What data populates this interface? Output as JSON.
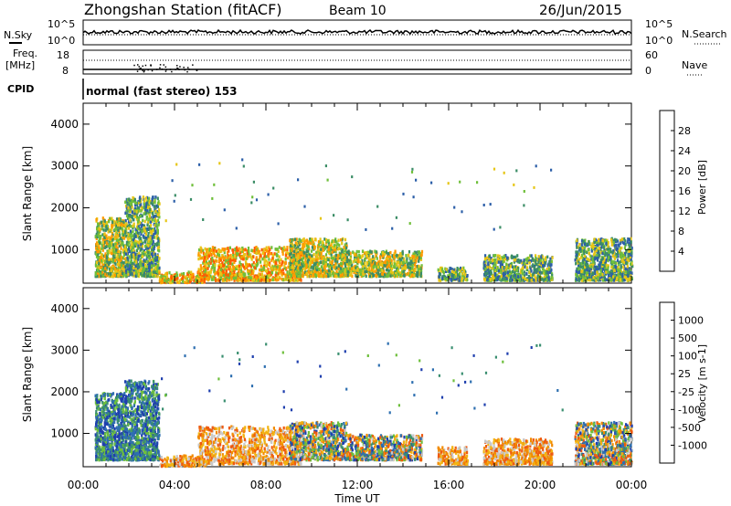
{
  "header": {
    "station": "Zhongshan Station (fitACF)",
    "beam": "Beam 10",
    "date": "26/Jun/2015"
  },
  "panels": {
    "nsky": {
      "label": "N.Sky",
      "ticks": [
        "10^5",
        "10^0"
      ],
      "right_label": "N.Search",
      "right_ticks": [
        "10^5",
        "10^0"
      ]
    },
    "freq": {
      "label_line1": "Freq.",
      "label_line2": "[MHz]",
      "ticks": [
        "18",
        "8"
      ],
      "right_label": "Nave",
      "right_ticks": [
        "60",
        "0"
      ]
    },
    "cpid": {
      "label": "CPID",
      "text": "normal (fast stereo) 153"
    }
  },
  "x_axis": {
    "label": "Time UT",
    "ticks": [
      "00:00",
      "04:00",
      "08:00",
      "12:00",
      "16:00",
      "20:00",
      "00:00"
    ]
  },
  "chart_data": [
    {
      "type": "heatmap",
      "title": "",
      "xlabel": "Time UT",
      "ylabel": "Slant Range [km]",
      "x_range_hours": [
        0,
        24
      ],
      "ylim": [
        200,
        4500
      ],
      "y_ticks": [
        1000,
        2000,
        3000,
        4000
      ],
      "x_ticks": [
        "00:00",
        "04:00",
        "08:00",
        "12:00",
        "16:00",
        "20:00",
        "00:00"
      ],
      "colorbar": {
        "label": "Power [dB]",
        "ticks": [
          "4",
          "8",
          "12",
          "16",
          "20",
          "24",
          "28"
        ],
        "colors": [
          "#0a0aff",
          "#2c5fa8",
          "#3b8d66",
          "#6fbf3a",
          "#e6c617",
          "#ff9a00",
          "#ff5a00",
          "#e81010"
        ]
      },
      "clusters": [
        {
          "t_start": 0.5,
          "t_end": 1.8,
          "r_min": 400,
          "r_max": 1800,
          "intensity": "medium"
        },
        {
          "t_start": 1.8,
          "t_end": 3.3,
          "r_min": 400,
          "r_max": 2300,
          "intensity": "low"
        },
        {
          "t_start": 3.3,
          "t_end": 5.3,
          "r_min": 250,
          "r_max": 500,
          "intensity": "high"
        },
        {
          "t_start": 5.0,
          "t_end": 9.5,
          "r_min": 300,
          "r_max": 1100,
          "intensity": "high"
        },
        {
          "t_start": 9.0,
          "t_end": 11.5,
          "r_min": 400,
          "r_max": 1300,
          "intensity": "medium"
        },
        {
          "t_start": 11.5,
          "t_end": 14.8,
          "r_min": 400,
          "r_max": 1000,
          "intensity": "medium"
        },
        {
          "t_start": 15.5,
          "t_end": 16.8,
          "r_min": 300,
          "r_max": 600,
          "intensity": "low"
        },
        {
          "t_start": 17.5,
          "t_end": 20.5,
          "r_min": 300,
          "r_max": 900,
          "intensity": "low"
        },
        {
          "t_start": 21.5,
          "t_end": 24.0,
          "r_min": 300,
          "r_max": 1300,
          "intensity": "low"
        }
      ]
    },
    {
      "type": "heatmap",
      "title": "",
      "xlabel": "Time UT",
      "ylabel": "Slant Range [km]",
      "x_range_hours": [
        0,
        24
      ],
      "ylim": [
        200,
        4500
      ],
      "y_ticks": [
        1000,
        2000,
        3000,
        4000
      ],
      "x_ticks": [
        "00:00",
        "04:00",
        "08:00",
        "12:00",
        "16:00",
        "20:00",
        "00:00"
      ],
      "colorbar": {
        "label": "Velocity [m s-1]",
        "ticks": [
          "1000",
          "500",
          "100",
          "25",
          "-25",
          "-100",
          "-500",
          "-1000"
        ],
        "colors": [
          "#1f3fae",
          "#2e6fb0",
          "#3a8f70",
          "#6ebf3c",
          "#c8c8c8",
          "#f2b313",
          "#f28a00",
          "#ee5a10",
          "#e01010"
        ]
      },
      "clusters": [
        {
          "t_start": 0.5,
          "t_end": 1.8,
          "r_min": 400,
          "r_max": 2000,
          "tone": "positive"
        },
        {
          "t_start": 1.8,
          "t_end": 3.3,
          "r_min": 400,
          "r_max": 2300,
          "tone": "positive"
        },
        {
          "t_start": 3.3,
          "t_end": 5.3,
          "r_min": 250,
          "r_max": 500,
          "tone": "negative"
        },
        {
          "t_start": 5.0,
          "t_end": 9.5,
          "r_min": 300,
          "r_max": 1200,
          "tone": "negative"
        },
        {
          "t_start": 9.0,
          "t_end": 11.5,
          "r_min": 400,
          "r_max": 1300,
          "tone": "mixed"
        },
        {
          "t_start": 11.5,
          "t_end": 14.8,
          "r_min": 400,
          "r_max": 1000,
          "tone": "mixed"
        },
        {
          "t_start": 15.5,
          "t_end": 16.8,
          "r_min": 300,
          "r_max": 700,
          "tone": "negative"
        },
        {
          "t_start": 17.5,
          "t_end": 20.5,
          "r_min": 300,
          "r_max": 900,
          "tone": "negative"
        },
        {
          "t_start": 21.5,
          "t_end": 24.0,
          "r_min": 300,
          "r_max": 1300,
          "tone": "mixed"
        }
      ]
    }
  ]
}
